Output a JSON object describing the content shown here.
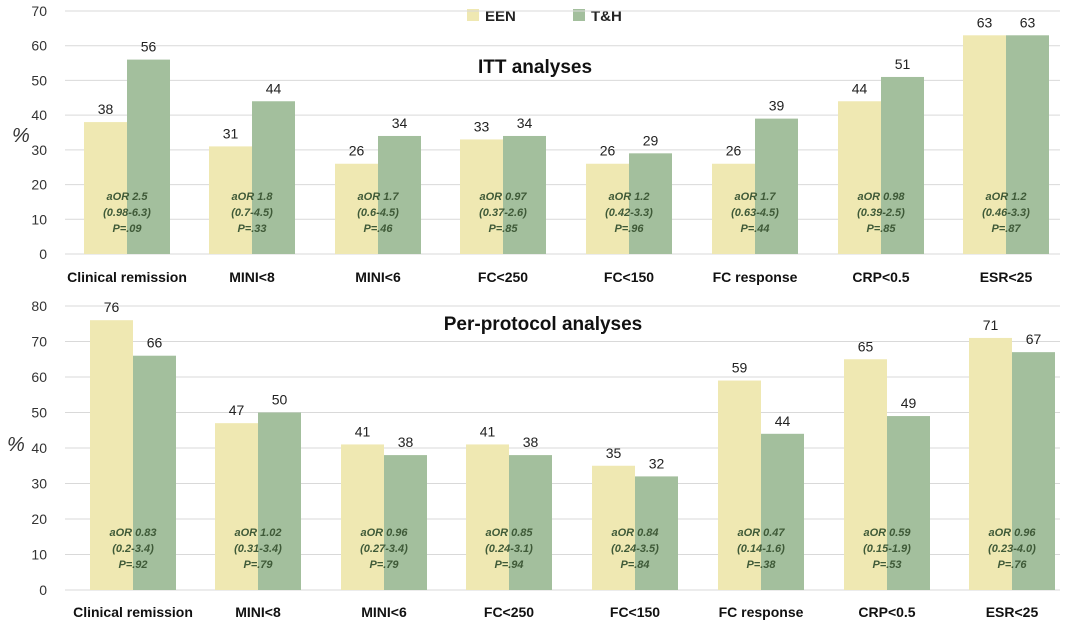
{
  "legend": {
    "een": "EEN",
    "th": "T&H"
  },
  "colors": {
    "een": "#efe8b2",
    "th": "#a3bf9d",
    "annotation": "#3f5a38"
  },
  "chart_data": [
    {
      "type": "bar",
      "title": "ITT analyses",
      "ylabel": "%",
      "ylim": [
        0,
        70
      ],
      "yticks": [
        "0",
        "10",
        "20",
        "30",
        "40",
        "50",
        "60",
        "70"
      ],
      "grid": true,
      "legend_position": "top-center",
      "categories": [
        "Clinical remission",
        "MINI<8",
        "MINI<6",
        "FC<250",
        "FC<150",
        "FC response",
        "CRP<0.5",
        "ESR<25"
      ],
      "series": [
        {
          "name": "EEN",
          "values": [
            38,
            31,
            26,
            33,
            26,
            26,
            44,
            63
          ]
        },
        {
          "name": "T&H",
          "values": [
            56,
            44,
            34,
            34,
            29,
            39,
            51,
            63
          ]
        }
      ],
      "annotations": [
        [
          "aOR 2.5",
          "(0.98-6.3)",
          "P=.09"
        ],
        [
          "aOR 1.8",
          "(0.7-4.5)",
          "P=.33"
        ],
        [
          "aOR 1.7",
          "(0.6-4.5)",
          "P=.46"
        ],
        [
          "aOR 0.97",
          "(0.37-2.6)",
          "P=.85"
        ],
        [
          "aOR 1.2",
          "(0.42-3.3)",
          "P=.96"
        ],
        [
          "aOR 1.7",
          "(0.63-4.5)",
          "P=.44"
        ],
        [
          "aOR 0.98",
          "(0.39-2.5)",
          "P=.85"
        ],
        [
          "aOR 1.2",
          "(0.46-3.3)",
          "P=.87"
        ]
      ]
    },
    {
      "type": "bar",
      "title": "Per-protocol analyses",
      "ylabel": "%",
      "ylim": [
        0,
        80
      ],
      "yticks": [
        "0",
        "10",
        "20",
        "30",
        "40",
        "50",
        "60",
        "70",
        "80"
      ],
      "grid": true,
      "categories": [
        "Clinical remission",
        "MINI<8",
        "MINI<6",
        "FC<250",
        "FC<150",
        "FC response",
        "CRP<0.5",
        "ESR<25"
      ],
      "series": [
        {
          "name": "EEN",
          "values": [
            76,
            47,
            41,
            41,
            35,
            59,
            65,
            71
          ]
        },
        {
          "name": "T&H",
          "values": [
            66,
            50,
            38,
            38,
            32,
            44,
            49,
            67
          ]
        }
      ],
      "annotations": [
        [
          "aOR 0.83",
          "(0.2-3.4)",
          "P=.92"
        ],
        [
          "aOR 1.02",
          "(0.31-3.4)",
          "P=.79"
        ],
        [
          "aOR 0.96",
          "(0.27-3.4)",
          "P=.79"
        ],
        [
          "aOR 0.85",
          "(0.24-3.1)",
          "P=.94"
        ],
        [
          "aOR 0.84",
          "(0.24-3.5)",
          "P=.84"
        ],
        [
          "aOR 0.47",
          "(0.14-1.6)",
          "P=.38"
        ],
        [
          "aOR 0.59",
          "(0.15-1.9)",
          "P=.53"
        ],
        [
          "aOR 0.96",
          "(0.23-4.0)",
          "P=.76"
        ]
      ]
    }
  ]
}
